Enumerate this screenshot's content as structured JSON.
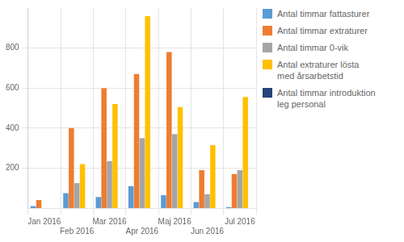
{
  "chart_data": {
    "type": "bar",
    "categories": [
      "Jan 2016",
      "Feb 2016",
      "Mar 2016",
      "Apr 2016",
      "Maj 2016",
      "Jun 2016",
      "Jul 2016"
    ],
    "series": [
      {
        "name": "Antal timmar fattasturer",
        "color": "#5B9BD5",
        "values": [
          10,
          75,
          55,
          110,
          65,
          30,
          5
        ]
      },
      {
        "name": "Antal timmar extraturer",
        "color": "#ED7D31",
        "values": [
          40,
          400,
          600,
          670,
          780,
          190,
          170
        ]
      },
      {
        "name": "Antal timmar 0-vik",
        "color": "#A5A5A5",
        "values": [
          0,
          125,
          235,
          350,
          370,
          70,
          190
        ]
      },
      {
        "name": "Antal extraturer lösta\nmed årsarbetstid",
        "color": "#FFC000",
        "values": [
          0,
          220,
          520,
          960,
          505,
          315,
          555
        ]
      },
      {
        "name": "Antal timmar introduktion\nleg personal",
        "color": "#264478",
        "values": [
          0,
          0,
          0,
          0,
          0,
          0,
          0
        ]
      }
    ],
    "ylim": [
      0,
      1000
    ],
    "yticks": [
      200,
      400,
      600,
      800
    ],
    "grid": true,
    "legend": "right"
  }
}
